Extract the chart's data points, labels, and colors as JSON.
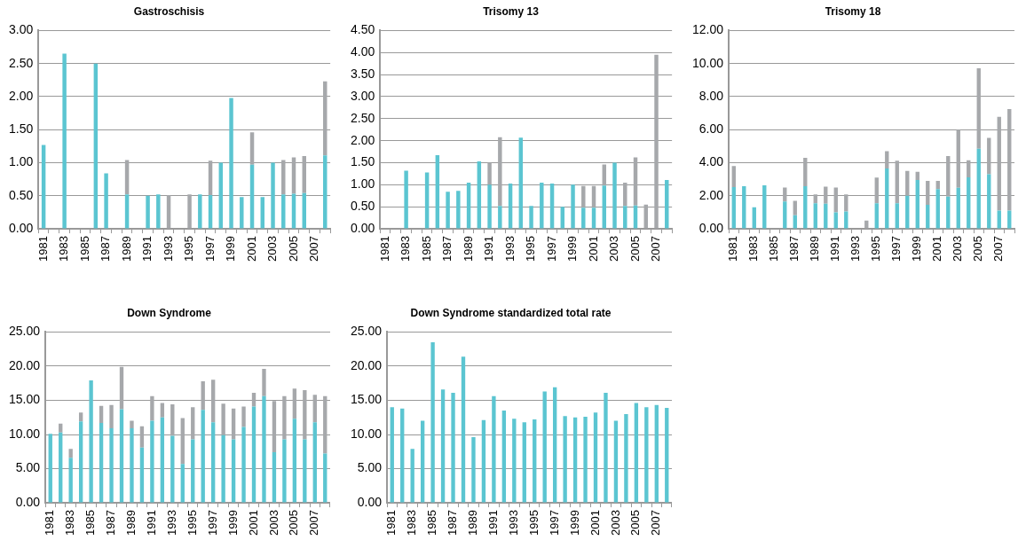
{
  "chart_data": [
    {
      "type": "bar",
      "title": "Gastroschisis",
      "stacked": true,
      "grid": "y",
      "legend": false,
      "categories": [
        "1981",
        null,
        "1983",
        null,
        "1985",
        null,
        "1987",
        null,
        "1989",
        null,
        "1991",
        null,
        "1993",
        null,
        "1995",
        null,
        "1997",
        null,
        "1999",
        null,
        "2001",
        null,
        "2003",
        null,
        "2005",
        null,
        "2007",
        null
      ],
      "ylim": [
        0,
        3
      ],
      "yticks": [
        {
          "value": 0,
          "label": "0.00"
        },
        {
          "value": 0.5,
          "label": "0.50"
        },
        {
          "value": 1,
          "label": "1.00"
        },
        {
          "value": 1.5,
          "label": "1.50"
        },
        {
          "value": 2,
          "label": "2.00"
        },
        {
          "value": 2.5,
          "label": "2.50"
        },
        {
          "value": 3,
          "label": "3.00"
        }
      ],
      "series": [
        {
          "color": "#5bc5d1",
          "values": [
            1.27,
            0,
            2.65,
            0,
            0,
            2.5,
            0.84,
            0,
            0.52,
            0,
            0.5,
            0.52,
            0,
            0,
            0,
            0.52,
            0.51,
            1.0,
            1.98,
            0.48,
            0.97,
            0.48,
            1.0,
            0.52,
            0.53,
            0.54,
            0,
            1.11
          ]
        },
        {
          "color": "#a6a8ab",
          "values": [
            0,
            0,
            0,
            0,
            0,
            0,
            0,
            0,
            0.52,
            0,
            0,
            0,
            0.51,
            0,
            0.52,
            0,
            0.52,
            0,
            0,
            0,
            0.49,
            0,
            0,
            0.52,
            0.55,
            0.56,
            0,
            1.12
          ]
        }
      ]
    },
    {
      "type": "bar",
      "title": "Trisomy 13",
      "stacked": true,
      "grid": "y",
      "legend": false,
      "categories": [
        "1981",
        null,
        "1983",
        null,
        "1985",
        null,
        "1987",
        null,
        "1989",
        null,
        "1991",
        null,
        "1993",
        null,
        "1995",
        null,
        "1997",
        null,
        "1999",
        null,
        "2001",
        null,
        "2003",
        null,
        "2005",
        null,
        "2007",
        null
      ],
      "ylim": [
        0,
        4.5
      ],
      "yticks": [
        {
          "value": 0,
          "label": "0.00"
        },
        {
          "value": 0.5,
          "label": "0.50"
        },
        {
          "value": 1,
          "label": "1.00"
        },
        {
          "value": 1.5,
          "label": "1.50"
        },
        {
          "value": 2,
          "label": "2.00"
        },
        {
          "value": 2.5,
          "label": "2.50"
        },
        {
          "value": 3,
          "label": "3.00"
        },
        {
          "value": 3.5,
          "label": "3.50"
        },
        {
          "value": 4,
          "label": "4.00"
        },
        {
          "value": 4.5,
          "label": "4.50"
        }
      ],
      "series": [
        {
          "color": "#5bc5d1",
          "values": [
            0,
            0,
            1.32,
            0,
            1.28,
            1.67,
            0.84,
            0.86,
            1.05,
            1.53,
            1.0,
            0.52,
            1.03,
            2.07,
            0.52,
            1.05,
            1.03,
            0.5,
            1.0,
            0.48,
            0.48,
            0.98,
            1.5,
            0.52,
            0.53,
            0,
            0,
            1.11
          ]
        },
        {
          "color": "#a6a8ab",
          "values": [
            0,
            0,
            0,
            0,
            0,
            0,
            0,
            0,
            0,
            0,
            0.5,
            1.56,
            0,
            0,
            0,
            0,
            0,
            0,
            0,
            0.49,
            0.49,
            0.48,
            0,
            0.53,
            1.09,
            0.55,
            3.95,
            0
          ]
        }
      ]
    },
    {
      "type": "bar",
      "title": "Trisomy 18",
      "stacked": true,
      "grid": "y",
      "legend": false,
      "categories": [
        "1981",
        null,
        "1983",
        null,
        "1985",
        null,
        "1987",
        null,
        "1989",
        null,
        "1991",
        null,
        "1993",
        null,
        "1995",
        null,
        "1997",
        null,
        "1999",
        null,
        "2001",
        null,
        "2003",
        null,
        "2005",
        null,
        "2007",
        null
      ],
      "ylim": [
        0,
        12
      ],
      "yticks": [
        {
          "value": 0,
          "label": "0.00"
        },
        {
          "value": 2,
          "label": "2.00"
        },
        {
          "value": 4,
          "label": "4.00"
        },
        {
          "value": 6,
          "label": "6.00"
        },
        {
          "value": 8,
          "label": "8.00"
        },
        {
          "value": 10,
          "label": "10.00"
        },
        {
          "value": 12,
          "label": "12.00"
        }
      ],
      "series": [
        {
          "color": "#5bc5d1",
          "values": [
            2.52,
            2.58,
            1.3,
            2.63,
            0,
            1.65,
            0.82,
            2.58,
            1.55,
            1.52,
            1.0,
            1.05,
            0,
            0,
            1.55,
            3.65,
            1.55,
            2.0,
            2.95,
            1.45,
            2.4,
            1.95,
            2.48,
            3.12,
            4.85,
            3.3,
            1.1,
            1.1
          ]
        },
        {
          "color": "#a6a8ab",
          "values": [
            1.28,
            0,
            0,
            0,
            0,
            0.85,
            0.88,
            1.72,
            0.53,
            1.03,
            1.5,
            1.03,
            0,
            0.5,
            1.55,
            1.05,
            2.57,
            1.5,
            0.5,
            1.45,
            0.5,
            2.45,
            3.52,
            1.03,
            4.87,
            2.2,
            5.68,
            6.15
          ]
        }
      ]
    },
    {
      "type": "bar",
      "title": "Down Syndrome",
      "stacked": true,
      "grid": "y",
      "legend": false,
      "categories": [
        "1981",
        null,
        "1983",
        null,
        "1985",
        null,
        "1987",
        null,
        "1989",
        null,
        "1991",
        null,
        "1993",
        null,
        "1995",
        null,
        "1997",
        null,
        "1999",
        null,
        "2001",
        null,
        "2003",
        null,
        "2005",
        null,
        "2007",
        null
      ],
      "ylim": [
        0,
        25
      ],
      "yticks": [
        {
          "value": 0,
          "label": "0.00"
        },
        {
          "value": 5,
          "label": "5.00"
        },
        {
          "value": 10,
          "label": "10.00"
        },
        {
          "value": 15,
          "label": "15.00"
        },
        {
          "value": 20,
          "label": "20.00"
        },
        {
          "value": 25,
          "label": "25.00"
        }
      ],
      "series": [
        {
          "color": "#5bc5d1",
          "values": [
            10.1,
            10.3,
            6.6,
            11.9,
            17.9,
            11.7,
            10.9,
            13.7,
            10.9,
            8.1,
            12.0,
            12.5,
            9.8,
            5.7,
            9.3,
            13.6,
            11.8,
            9.9,
            9.3,
            11.1,
            14.1,
            15.6,
            7.4,
            9.3,
            12.3,
            9.3,
            11.8,
            7.2
          ]
        },
        {
          "color": "#a6a8ab",
          "values": [
            0,
            1.3,
            1.3,
            1.3,
            0,
            2.5,
            3.4,
            6.2,
            1.1,
            3.1,
            3.6,
            2.1,
            4.6,
            6.7,
            4.7,
            4.2,
            6.2,
            4.6,
            4.5,
            3.0,
            2.0,
            4.0,
            7.5,
            6.3,
            4.4,
            7.2,
            4.0,
            8.4
          ]
        }
      ]
    },
    {
      "type": "bar",
      "title": "Down Syndrome standardized total rate",
      "grid": "y",
      "legend": false,
      "categories": [
        "1981",
        null,
        "1983",
        null,
        "1985",
        null,
        "1987",
        null,
        "1989",
        null,
        "1991",
        null,
        "1993",
        null,
        "1995",
        null,
        "1997",
        null,
        "1999",
        null,
        "2001",
        null,
        "2003",
        null,
        "2005",
        null,
        "2007",
        null
      ],
      "ylim": [
        0,
        25
      ],
      "yticks": [
        {
          "value": 0,
          "label": "0.00"
        },
        {
          "value": 5,
          "label": "5.00"
        },
        {
          "value": 10,
          "label": "10.00"
        },
        {
          "value": 15,
          "label": "15.00"
        },
        {
          "value": 20,
          "label": "20.00"
        },
        {
          "value": 25,
          "label": "25.00"
        }
      ],
      "series": [
        {
          "color": "#5bc5d1",
          "values": [
            14.0,
            13.8,
            7.9,
            12.0,
            23.5,
            16.6,
            16.1,
            21.4,
            9.6,
            12.1,
            15.6,
            13.5,
            12.3,
            11.8,
            12.2,
            16.3,
            16.9,
            12.7,
            12.5,
            12.6,
            13.2,
            16.1,
            12.0,
            13.0,
            14.6,
            14.0,
            14.3,
            13.9
          ]
        }
      ]
    }
  ]
}
